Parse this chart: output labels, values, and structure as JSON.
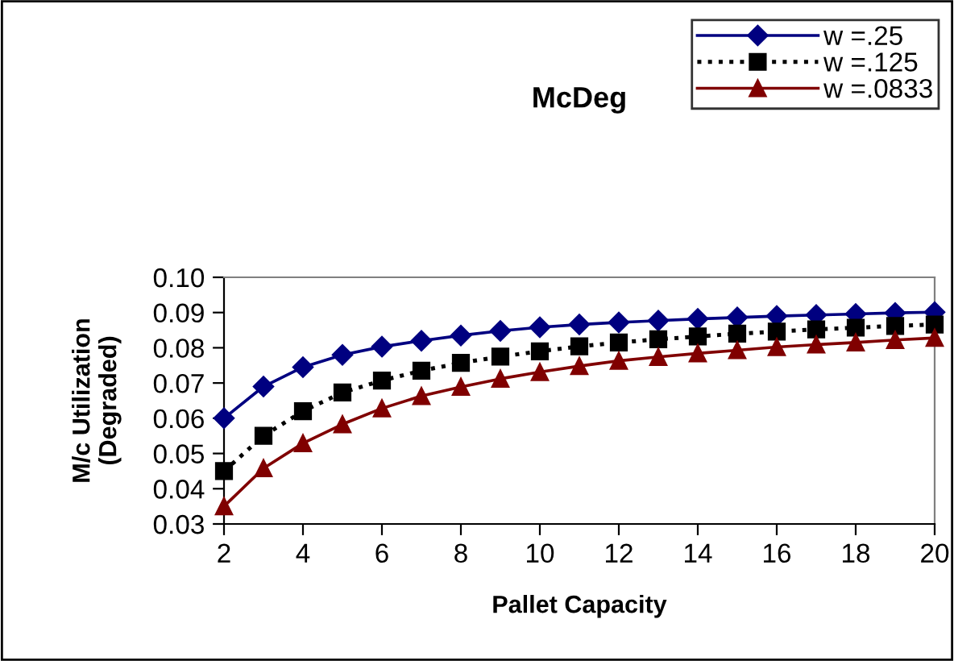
{
  "chart_data": {
    "type": "line",
    "title": "McDeg",
    "xlabel": "Pallet Capacity",
    "ylabel": "M/c Utilization\n(Degraded)",
    "x": [
      2,
      3,
      4,
      5,
      6,
      7,
      8,
      9,
      10,
      11,
      12,
      13,
      14,
      15,
      16,
      17,
      18,
      19,
      20
    ],
    "series": [
      {
        "name": "w =.25",
        "color": "#000080",
        "marker": "diamond",
        "line_style": "solid",
        "values": [
          0.06,
          0.069,
          0.0745,
          0.078,
          0.0803,
          0.082,
          0.0835,
          0.0848,
          0.0858,
          0.0866,
          0.0872,
          0.0877,
          0.0882,
          0.0886,
          0.089,
          0.0893,
          0.0896,
          0.0899,
          0.0901
        ]
      },
      {
        "name": "w =.125",
        "color": "#000000",
        "marker": "square",
        "line_style": "dotted",
        "values": [
          0.045,
          0.055,
          0.062,
          0.0673,
          0.0707,
          0.0735,
          0.0757,
          0.0775,
          0.079,
          0.0804,
          0.0815,
          0.0824,
          0.0832,
          0.084,
          0.0846,
          0.0852,
          0.0857,
          0.0862,
          0.0866
        ]
      },
      {
        "name": "w =.0833",
        "color": "#800000",
        "marker": "triangle",
        "line_style": "solid",
        "values": [
          0.035,
          0.0458,
          0.0529,
          0.0583,
          0.0628,
          0.0663,
          0.0689,
          0.0712,
          0.0731,
          0.0748,
          0.0763,
          0.0774,
          0.0784,
          0.0793,
          0.0802,
          0.0809,
          0.0815,
          0.0822,
          0.0828
        ]
      }
    ],
    "xlim": [
      2,
      20
    ],
    "xticks": [
      2,
      4,
      6,
      8,
      10,
      12,
      14,
      16,
      18,
      20
    ],
    "ylim": [
      0.03,
      0.1
    ],
    "yticks": [
      {
        "value": 0.03,
        "label": "0.03"
      },
      {
        "value": 0.04,
        "label": "0.04"
      },
      {
        "value": 0.05,
        "label": "0.05"
      },
      {
        "value": 0.06,
        "label": "0.06"
      },
      {
        "value": 0.07,
        "label": "0.07"
      },
      {
        "value": 0.08,
        "label": "0.08"
      },
      {
        "value": 0.09,
        "label": "0.09"
      },
      {
        "value": 0.1,
        "label": "0.10"
      }
    ],
    "grid": false,
    "legend": "top right"
  }
}
